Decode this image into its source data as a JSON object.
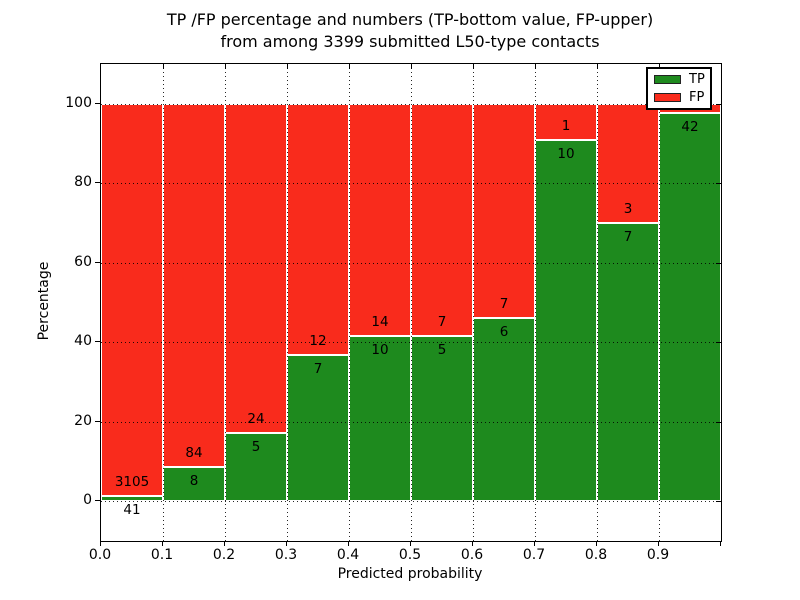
{
  "chart_data": {
    "type": "bar",
    "stacked": true,
    "title_line1": "TP /FP percentage and numbers (TP-bottom value, FP-upper)",
    "title_line2": "from among 3399 submitted L50-type contacts",
    "xlabel": "Predicted probability",
    "ylabel": "Percentage",
    "total_submitted": 3399,
    "xlim": [
      0.0,
      1.0
    ],
    "ylim": [
      -10,
      110
    ],
    "bin_width": 0.1,
    "grid": "dotted",
    "x_tick_labels": [
      "0.0",
      "0.1",
      "0.2",
      "0.3",
      "0.4",
      "0.5",
      "0.6",
      "0.7",
      "0.8",
      "0.9"
    ],
    "y_tick_values": [
      0,
      20,
      40,
      60,
      80,
      100
    ],
    "colors": {
      "tp": "#1e8a1e",
      "fp": "#f92b1c"
    },
    "legend": {
      "position": "upper-right",
      "entries": [
        {
          "label": "TP",
          "color": "#1e8a1e"
        },
        {
          "label": "FP",
          "color": "#f92b1c"
        }
      ]
    },
    "bins": [
      {
        "range": "0.0-0.1",
        "tp_count": 41,
        "fp_count": 3105,
        "tp_pct": 1.3,
        "tp_label": "41",
        "fp_label": "3105"
      },
      {
        "range": "0.1-0.2",
        "tp_count": 8,
        "fp_count": 84,
        "tp_pct": 8.7,
        "tp_label": "8",
        "fp_label": "84"
      },
      {
        "range": "0.2-0.3",
        "tp_count": 5,
        "fp_count": 24,
        "tp_pct": 17.24,
        "tp_label": "5",
        "fp_label": "24"
      },
      {
        "range": "0.3-0.4",
        "tp_count": 7,
        "fp_count": 12,
        "tp_pct": 36.84,
        "tp_label": "7",
        "fp_label": "12"
      },
      {
        "range": "0.4-0.5",
        "tp_count": 10,
        "fp_count": 14,
        "tp_pct": 41.67,
        "tp_label": "10",
        "fp_label": "14"
      },
      {
        "range": "0.5-0.6",
        "tp_count": 5,
        "fp_count": 7,
        "tp_pct": 41.67,
        "tp_label": "5",
        "fp_label": "7"
      },
      {
        "range": "0.6-0.7",
        "tp_count": 6,
        "fp_count": 7,
        "tp_pct": 46.15,
        "tp_label": "6",
        "fp_label": "7"
      },
      {
        "range": "0.7-0.8",
        "tp_count": 10,
        "fp_count": 1,
        "tp_pct": 90.91,
        "tp_label": "10",
        "fp_label": "1"
      },
      {
        "range": "0.8-0.9",
        "tp_count": 7,
        "fp_count": 3,
        "tp_pct": 70.0,
        "tp_label": "7",
        "fp_label": "3"
      },
      {
        "range": "0.9-1.0",
        "tp_count": 42,
        "fp_count": 1,
        "tp_pct": 97.67,
        "tp_label": "42",
        "fp_label": ""
      }
    ]
  }
}
